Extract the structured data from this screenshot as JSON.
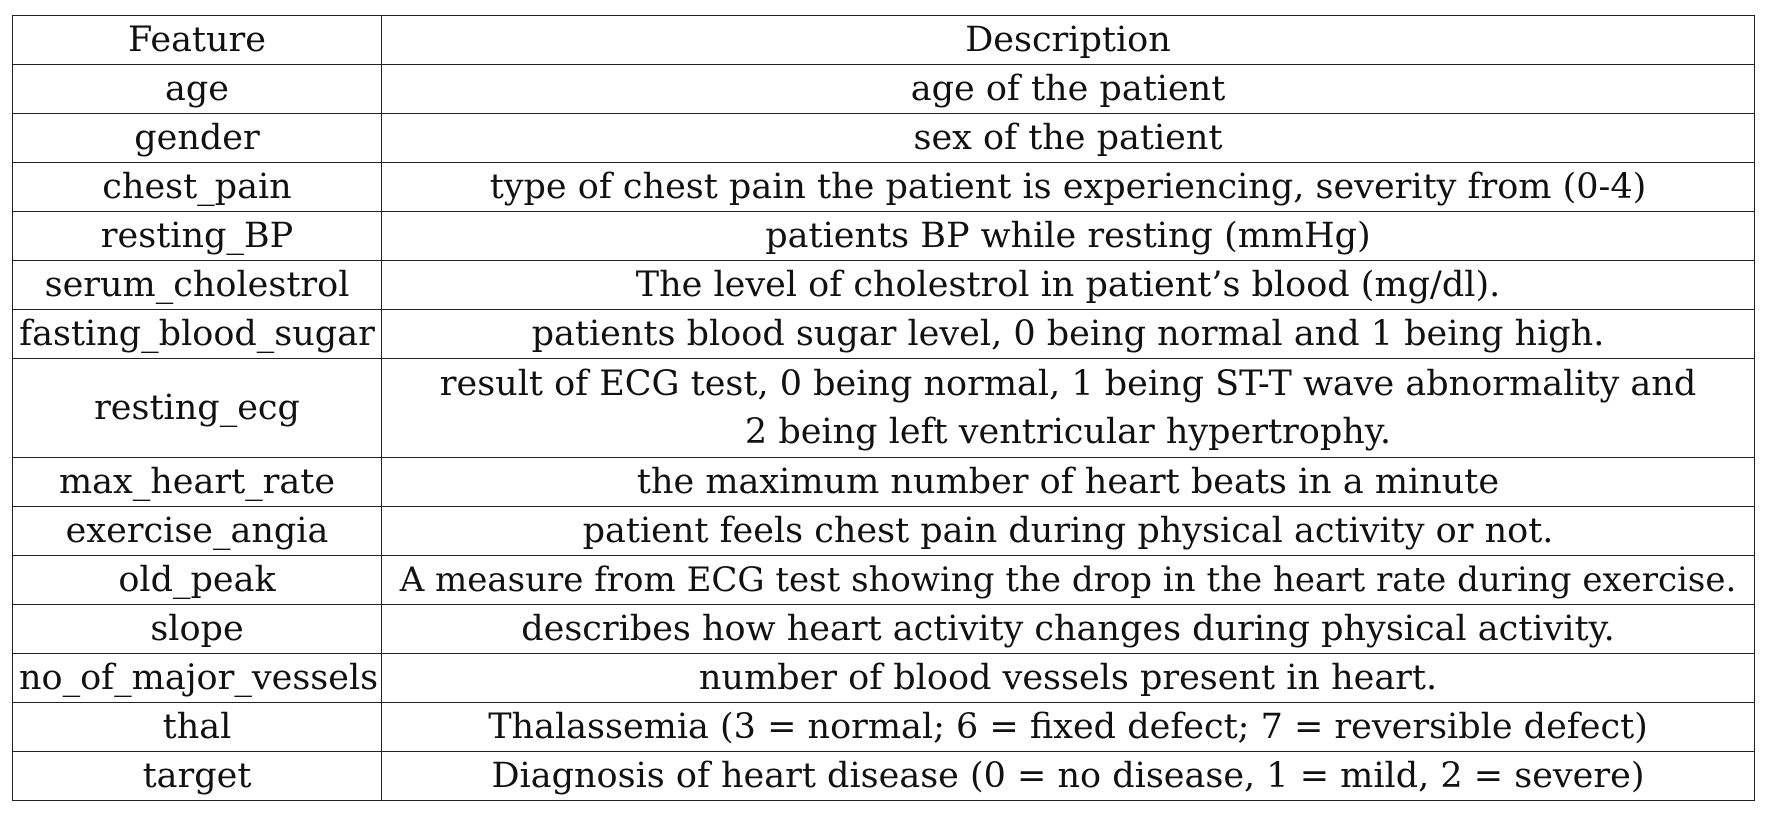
{
  "table": {
    "headers": [
      "Feature",
      "Description"
    ],
    "rows": [
      {
        "feature": "age",
        "description": [
          "age of the patient"
        ]
      },
      {
        "feature": "gender",
        "description": [
          "sex of the patient"
        ]
      },
      {
        "feature": "chest_pain",
        "description": [
          "type of chest pain the patient is experiencing, severity from (0-4)"
        ]
      },
      {
        "feature": "resting_BP",
        "description": [
          "patients BP while resting (mmHg)"
        ]
      },
      {
        "feature": "serum_cholestrol",
        "description": [
          "The level of cholestrol in patient’s blood (mg/dl)."
        ]
      },
      {
        "feature": "fasting_blood_sugar",
        "description": [
          "patients blood sugar level, 0 being normal and 1 being high."
        ]
      },
      {
        "feature": "resting_ecg",
        "description": [
          "result of ECG test, 0 being normal, 1 being ST-T wave abnormality and",
          "2 being left ventricular hypertrophy."
        ]
      },
      {
        "feature": "max_heart_rate",
        "description": [
          "the maximum number of heart beats in a minute"
        ]
      },
      {
        "feature": "exercise_angia",
        "description": [
          "patient feels chest pain during physical activity or not."
        ]
      },
      {
        "feature": "old_peak",
        "description": [
          "A measure from ECG test showing the drop in the heart rate during exercise."
        ]
      },
      {
        "feature": "slope",
        "description": [
          "describes how heart activity changes during physical activity."
        ]
      },
      {
        "feature": "no_of_major_vessels",
        "description": [
          "number of blood vessels present in heart."
        ]
      },
      {
        "feature": "thal",
        "description": [
          "Thalassemia (3 = normal; 6 = fixed defect; 7 = reversible defect)"
        ]
      },
      {
        "feature": "target",
        "description": [
          "Diagnosis of heart disease (0 = no disease, 1 = mild, 2 = severe)"
        ]
      }
    ]
  }
}
